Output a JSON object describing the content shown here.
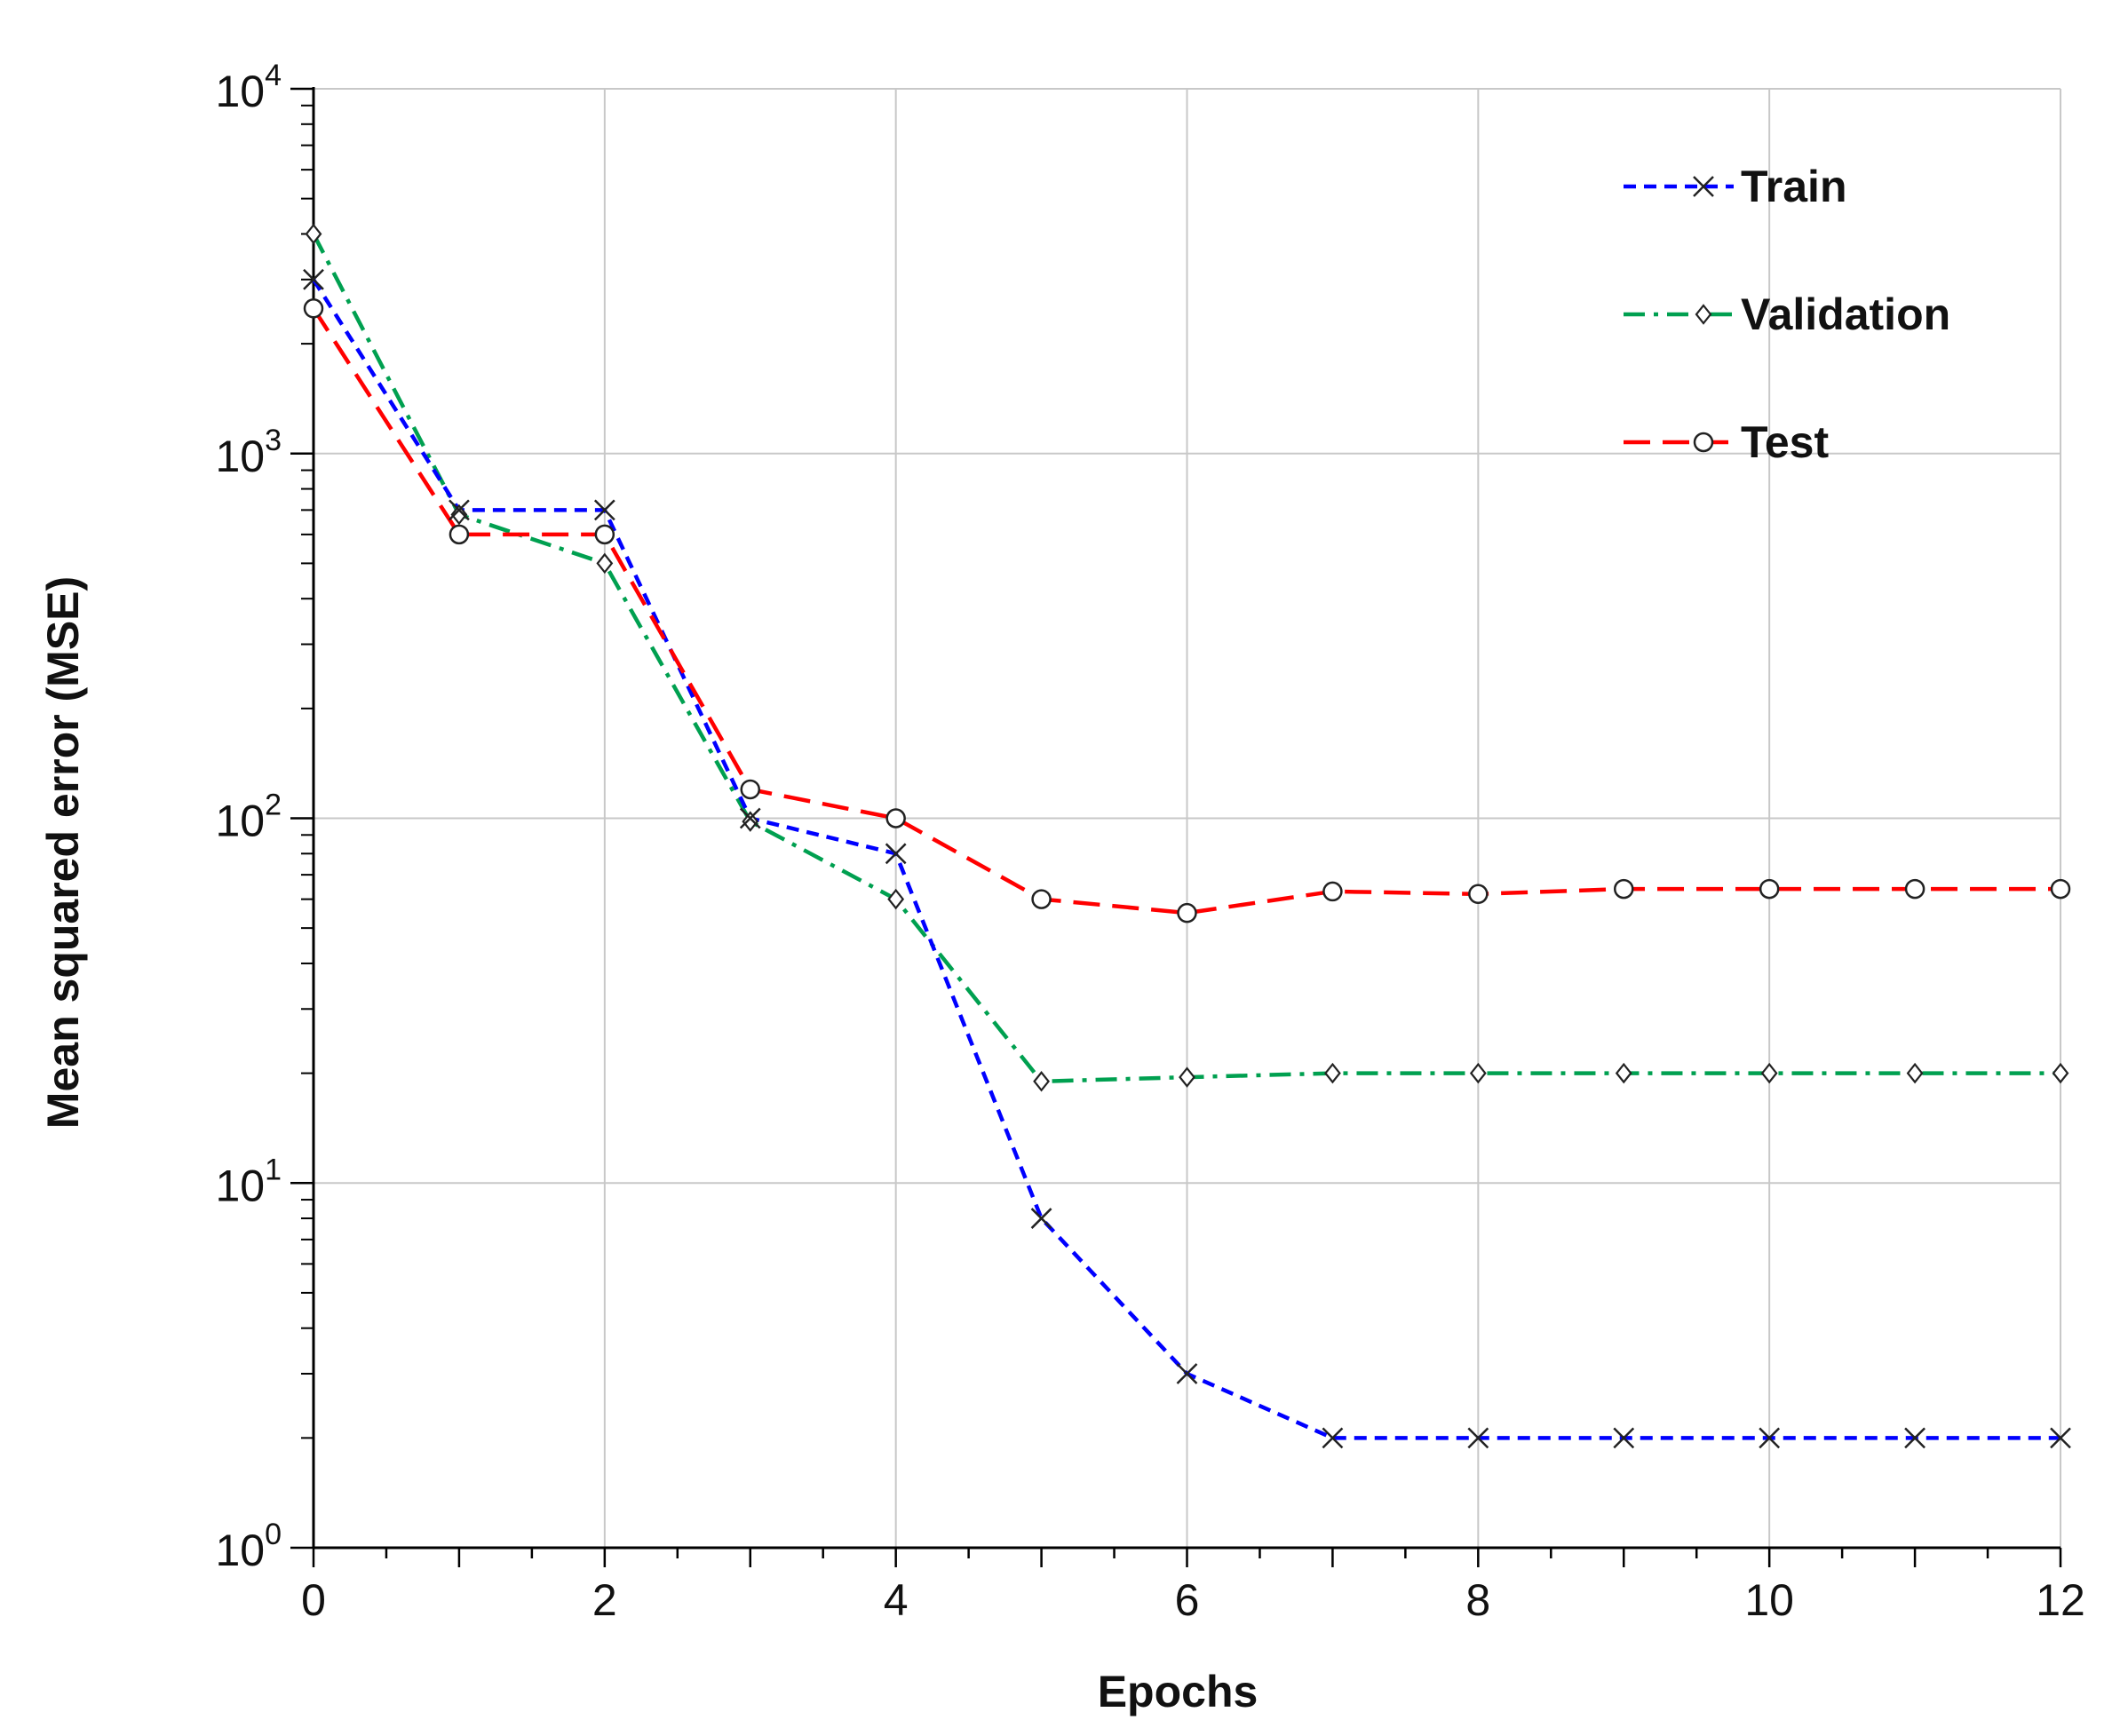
{
  "chart_data": {
    "type": "line",
    "title": "",
    "xlabel": "Epochs",
    "ylabel": "Mean squared error (MSE)",
    "xlim": [
      0,
      12
    ],
    "ylim": [
      1,
      10000
    ],
    "yscale": "log",
    "grid": true,
    "legend_position": "top-right",
    "x_ticks": [
      {
        "value": 0,
        "label": "0"
      },
      {
        "value": 2,
        "label": "2"
      },
      {
        "value": 4,
        "label": "4"
      },
      {
        "value": 6,
        "label": "6"
      },
      {
        "value": 8,
        "label": "8"
      },
      {
        "value": 10,
        "label": "10"
      },
      {
        "value": 12,
        "label": "12"
      }
    ],
    "y_ticks": [
      {
        "value": 1,
        "base": "10",
        "exp": "0"
      },
      {
        "value": 10,
        "base": "10",
        "exp": "1"
      },
      {
        "value": 100,
        "base": "10",
        "exp": "2"
      },
      {
        "value": 1000,
        "base": "10",
        "exp": "3"
      },
      {
        "value": 10000,
        "base": "10",
        "exp": "4"
      }
    ],
    "x": [
      0,
      1,
      2,
      3,
      4,
      5,
      6,
      7,
      8,
      9,
      10,
      11,
      12
    ],
    "series": [
      {
        "name": "Train",
        "color": "#0000ff",
        "dash": "dashed",
        "marker": "x",
        "values": [
          3000,
          700,
          700,
          100,
          80,
          8,
          3,
          2,
          2,
          2,
          2,
          2,
          2
        ]
      },
      {
        "name": "Validation",
        "color": "#00a050",
        "dash": "dashdot",
        "marker": "diamond",
        "values": [
          4000,
          680,
          500,
          98,
          60,
          19,
          19.5,
          20,
          20,
          20,
          20,
          20,
          20
        ]
      },
      {
        "name": "Test",
        "color": "#ff0000",
        "dash": "longdash",
        "marker": "circle",
        "values": [
          2500,
          600,
          600,
          120,
          100,
          60,
          55,
          63,
          62,
          64,
          64,
          64,
          64
        ]
      }
    ]
  }
}
